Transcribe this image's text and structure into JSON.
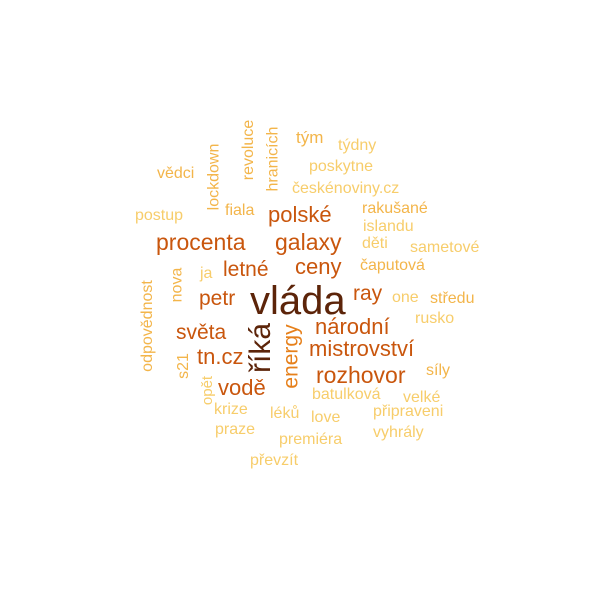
{
  "palette": {
    "darkest": "#5c2409",
    "dark": "#c9560d",
    "medium": "#e6801b",
    "light": "#f3b54a",
    "lightest": "#f7cd6b",
    "background": "#ffffff"
  },
  "words": {
    "vlada": "vláda",
    "rika": "říká",
    "procenta": "procenta",
    "galaxy": "galaxy",
    "rozhovor": "rozhovor",
    "mistrovstvi": "mistrovství",
    "narodni": "národní",
    "polske": "polské",
    "ceny": "ceny",
    "letne": "letné",
    "petr": "petr",
    "sveta": "světa",
    "tncz": "tn.cz",
    "vode": "vodě",
    "energy": "energy",
    "ray": "ray",
    "tym": "tým",
    "tydny": "týdny",
    "poskytne": "poskytne",
    "ceskenoviny": "českénoviny.cz",
    "vedci": "vědci",
    "lockdown": "lockdown",
    "revoluce": "revoluce",
    "hranicich": "hranicích",
    "postup": "postup",
    "fiala": "fiala",
    "rakusane": "rakušané",
    "islandu": "islandu",
    "deti": "děti",
    "sametove": "sametové",
    "caputova": "čaputová",
    "ja": "ja",
    "nova": "nova",
    "odpovednost": "odpovědnost",
    "one": "one",
    "stredu": "středu",
    "rusko": "rusko",
    "s21": "s21",
    "opet": "opět",
    "sily": "síly",
    "batulkova": "batulková",
    "velke": "velké",
    "krize": "krize",
    "leku": "léků",
    "love": "love",
    "pripraveni": "připraveni",
    "praze": "praze",
    "premiera": "premiéra",
    "vyhraly": "vyhrály",
    "prevzit": "převzít"
  }
}
